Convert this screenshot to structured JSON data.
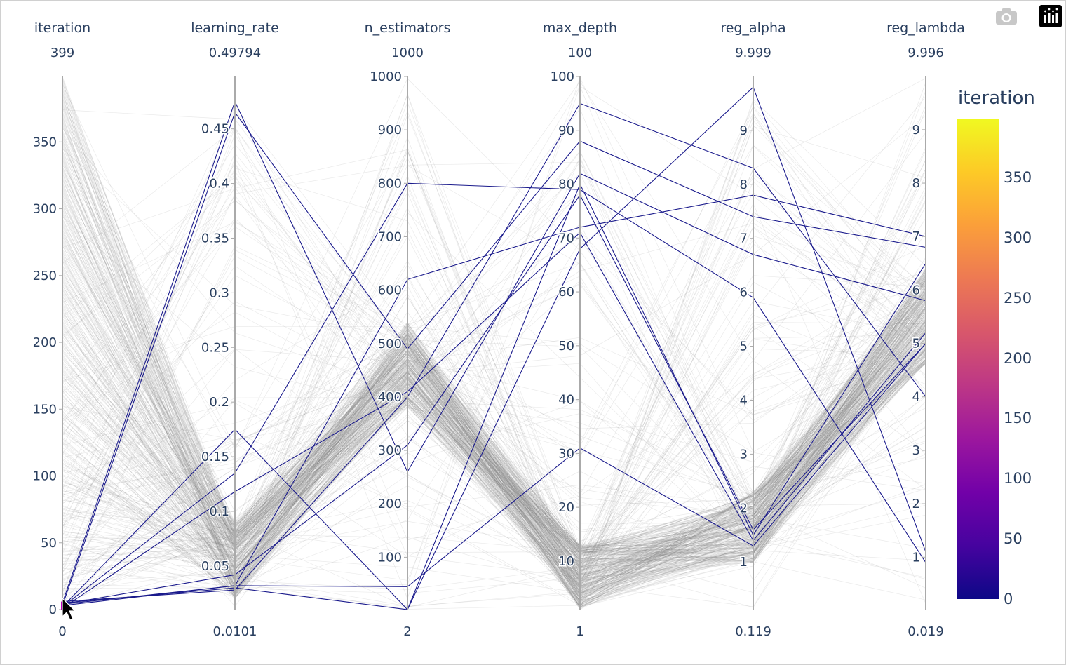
{
  "chart_data": {
    "type": "parallel_coordinates",
    "dimensions": [
      {
        "label": "iteration",
        "range": [
          0,
          399
        ],
        "max_label": "399",
        "min_label": "0",
        "ticks": [
          0,
          50,
          100,
          150,
          200,
          250,
          300,
          350
        ],
        "tick_labels": [
          "0",
          "50",
          "100",
          "150",
          "200",
          "250",
          "300",
          "350"
        ]
      },
      {
        "label": "learning_rate",
        "range": [
          0.0101,
          0.49794
        ],
        "max_label": "0.49794",
        "min_label": "0.0101",
        "ticks": [
          0.05,
          0.1,
          0.15,
          0.2,
          0.25,
          0.3,
          0.35,
          0.4,
          0.45
        ],
        "tick_labels": [
          "0.05",
          "0.1",
          "0.15",
          "0.2",
          "0.25",
          "0.3",
          "0.35",
          "0.4",
          "0.45"
        ]
      },
      {
        "label": "n_estimators",
        "range": [
          2,
          1000
        ],
        "max_label": "1000",
        "min_label": "2",
        "ticks": [
          100,
          200,
          300,
          400,
          500,
          600,
          700,
          800,
          900,
          1000
        ],
        "tick_labels": [
          "100",
          "200",
          "300",
          "400",
          "500",
          "600",
          "700",
          "800",
          "900",
          "1000"
        ]
      },
      {
        "label": "max_depth",
        "range": [
          1,
          100
        ],
        "max_label": "100",
        "min_label": "1",
        "ticks": [
          10,
          20,
          30,
          40,
          50,
          60,
          70,
          80,
          90,
          100
        ],
        "tick_labels": [
          "10",
          "20",
          "30",
          "40",
          "50",
          "60",
          "70",
          "80",
          "90",
          "100"
        ]
      },
      {
        "label": "reg_alpha",
        "range": [
          0.119,
          9.999
        ],
        "max_label": "9.999",
        "min_label": "0.119",
        "ticks": [
          1,
          2,
          3,
          4,
          5,
          6,
          7,
          8,
          9
        ],
        "tick_labels": [
          "1",
          "2",
          "3",
          "4",
          "5",
          "6",
          "7",
          "8",
          "9"
        ]
      },
      {
        "label": "reg_lambda",
        "range": [
          0.019,
          9.996
        ],
        "max_label": "9.996",
        "min_label": "0.019",
        "ticks": [
          1,
          2,
          3,
          4,
          5,
          6,
          7,
          8,
          9
        ],
        "tick_labels": [
          "1",
          "2",
          "3",
          "4",
          "5",
          "6",
          "7",
          "8",
          "9"
        ]
      }
    ],
    "highlighted_lines": [
      [
        3,
        0.465,
        490,
        88,
        7.4,
        6.8
      ],
      [
        5,
        0.475,
        260,
        82,
        6.7,
        5.8
      ],
      [
        4,
        0.032,
        620,
        72,
        7.8,
        7.0
      ],
      [
        6,
        0.028,
        400,
        95,
        8.3,
        4.0
      ],
      [
        2,
        0.135,
        800,
        79,
        5.9,
        0.9
      ],
      [
        5,
        0.03,
        0,
        80,
        1.5,
        6.5
      ],
      [
        4,
        0.042,
        310,
        78,
        1.6,
        5.0
      ],
      [
        3,
        0.032,
        45,
        31,
        1.3,
        5.0
      ],
      [
        2,
        0.175,
        2,
        68,
        9.8,
        1.1
      ],
      [
        1,
        0.118,
        410,
        71,
        1.4,
        5.2
      ]
    ],
    "colorbar": {
      "title": "iteration",
      "range": [
        0,
        399
      ],
      "ticks": [
        0,
        50,
        100,
        150,
        200,
        250,
        300,
        350
      ],
      "tick_labels": [
        "0",
        "50",
        "100",
        "150",
        "200",
        "250",
        "300",
        "350"
      ],
      "colorscale": [
        "#0d0887",
        "#46039f",
        "#7201a8",
        "#9c179e",
        "#bd3786",
        "#d8576b",
        "#ed7953",
        "#fb9f3a",
        "#fdca26",
        "#f0f921"
      ]
    },
    "selected_color": "#1a1a8c",
    "context_color": "#7f7f7f"
  }
}
